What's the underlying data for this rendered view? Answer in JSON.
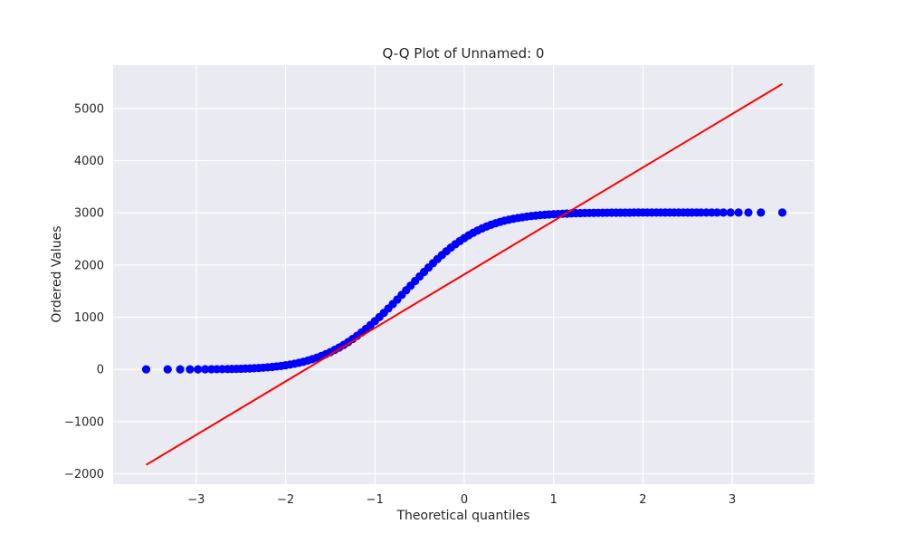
{
  "chart_data": {
    "type": "scatter",
    "title": "Q-Q Plot of Unnamed: 0",
    "xlabel": "Theoretical quantiles",
    "ylabel": "Ordered Values",
    "xlim": [
      -3.93,
      3.92
    ],
    "ylim": [
      -2200,
      5830
    ],
    "xticks": [
      -3,
      -2,
      -1,
      0,
      1,
      2,
      3
    ],
    "xtick_labels": [
      "−3",
      "−2",
      "−1",
      "0",
      "1",
      "2",
      "3"
    ],
    "yticks": [
      -2000,
      -1000,
      0,
      1000,
      2000,
      3000,
      4000,
      5000
    ],
    "ytick_labels": [
      "−2000",
      "−1000",
      "0",
      "1000",
      "2000",
      "3000",
      "4000",
      "5000"
    ],
    "grid": true,
    "background_color": "#eaeaf2",
    "grid_color": "#ffffff",
    "series": [
      {
        "kind": "points",
        "color": "#0000ff",
        "x": [
          -3.56,
          -3.32,
          -3.18,
          -3.07,
          -2.98,
          -2.9,
          -2.83,
          -2.77,
          -2.71,
          -2.65,
          -2.6,
          -2.55,
          -2.5,
          -2.45,
          -2.4,
          -2.35,
          -2.3,
          -2.25,
          -2.2,
          -2.15,
          -2.1,
          -2.05,
          -2.0,
          -1.95,
          -1.9,
          -1.85,
          -1.8,
          -1.75,
          -1.7,
          -1.65,
          -1.6,
          -1.55,
          -1.5,
          -1.45,
          -1.4,
          -1.35,
          -1.3,
          -1.25,
          -1.2,
          -1.15,
          -1.1,
          -1.05,
          -1.0,
          -0.95,
          -0.9,
          -0.85,
          -0.8,
          -0.75,
          -0.7,
          -0.65,
          -0.6,
          -0.55,
          -0.5,
          -0.45,
          -0.4,
          -0.35,
          -0.3,
          -0.25,
          -0.2,
          -0.15,
          -0.1,
          -0.05,
          0.0,
          0.05,
          0.1,
          0.15,
          0.2,
          0.25,
          0.3,
          0.35,
          0.4,
          0.45,
          0.5,
          0.55,
          0.6,
          0.65,
          0.7,
          0.75,
          0.8,
          0.85,
          0.9,
          0.95,
          1.0,
          1.05,
          1.1,
          1.15,
          1.2,
          1.25,
          1.3,
          1.35,
          1.4,
          1.45,
          1.5,
          1.55,
          1.6,
          1.65,
          1.7,
          1.75,
          1.8,
          1.85,
          1.9,
          1.95,
          2.0,
          2.05,
          2.1,
          2.15,
          2.2,
          2.25,
          2.3,
          2.35,
          2.4,
          2.45,
          2.5,
          2.55,
          2.6,
          2.65,
          2.71,
          2.77,
          2.83,
          2.9,
          2.98,
          3.07,
          3.18,
          3.32,
          3.56
        ],
        "y": [
          0,
          0,
          1,
          1,
          1,
          2,
          3,
          4,
          5,
          6,
          8,
          10,
          12,
          15,
          18,
          22,
          27,
          32,
          39,
          46,
          56,
          66,
          78,
          92,
          108,
          126,
          146,
          169,
          195,
          224,
          256,
          291,
          330,
          373,
          419,
          469,
          523,
          581,
          642,
          707,
          776,
          848,
          924,
          1002,
          1083,
          1166,
          1252,
          1339,
          1427,
          1516,
          1605,
          1693,
          1781,
          1867,
          1952,
          2034,
          2114,
          2190,
          2263,
          2333,
          2398,
          2459,
          2516,
          2569,
          2617,
          2662,
          2702,
          2738,
          2771,
          2800,
          2826,
          2849,
          2869,
          2886,
          2902,
          2915,
          2927,
          2938,
          2947,
          2955,
          2962,
          2968,
          2973,
          2978,
          2982,
          2986,
          2989,
          2992,
          2994,
          2996,
          2998,
          2999,
          3000,
          3001,
          3002,
          3003,
          3003,
          3004,
          3004,
          3004,
          3005,
          3005,
          3005,
          3005,
          3005,
          3005,
          3005,
          3005,
          3005,
          3005,
          3005,
          3005,
          3005,
          3005,
          3005,
          3005,
          3005,
          3005,
          3005,
          3005,
          3005,
          3005,
          3005,
          3005,
          3005
        ]
      },
      {
        "kind": "line",
        "color": "#ff0000",
        "x": [
          -3.56,
          3.56
        ],
        "y": [
          -1830,
          5470
        ]
      }
    ]
  }
}
